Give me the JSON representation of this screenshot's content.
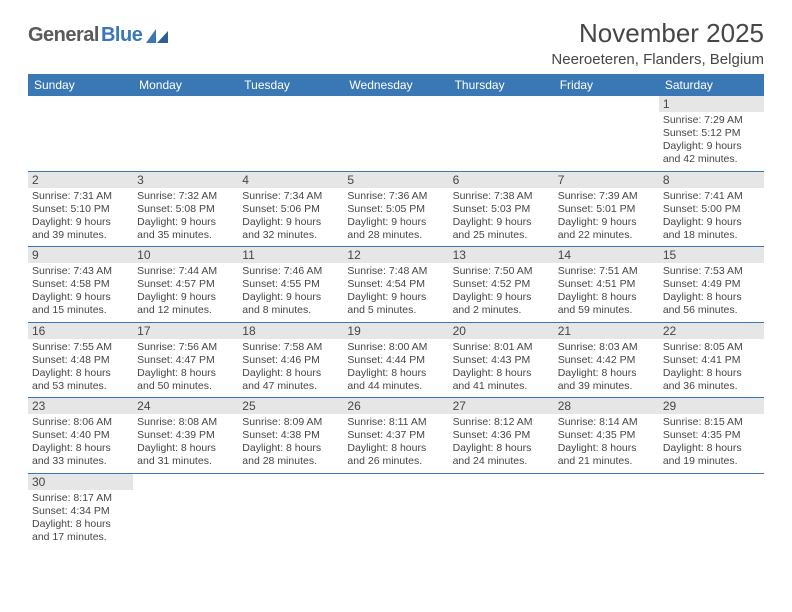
{
  "logo": {
    "part1": "General",
    "part2": "Blue"
  },
  "title": "November 2025",
  "location": "Neeroeteren, Flanders, Belgium",
  "colors": {
    "header_bg": "#3a78b5",
    "header_text": "#ffffff",
    "daynum_bg": "#e6e6e6",
    "text": "#464646",
    "border": "#3a78b5",
    "logo_gray": "#5a5a5a",
    "logo_blue": "#3a78b5"
  },
  "weekdays": [
    "Sunday",
    "Monday",
    "Tuesday",
    "Wednesday",
    "Thursday",
    "Friday",
    "Saturday"
  ],
  "weeks": [
    [
      null,
      null,
      null,
      null,
      null,
      null,
      {
        "n": "1",
        "sunrise": "Sunrise: 7:29 AM",
        "sunset": "Sunset: 5:12 PM",
        "dl1": "Daylight: 9 hours",
        "dl2": "and 42 minutes."
      }
    ],
    [
      {
        "n": "2",
        "sunrise": "Sunrise: 7:31 AM",
        "sunset": "Sunset: 5:10 PM",
        "dl1": "Daylight: 9 hours",
        "dl2": "and 39 minutes."
      },
      {
        "n": "3",
        "sunrise": "Sunrise: 7:32 AM",
        "sunset": "Sunset: 5:08 PM",
        "dl1": "Daylight: 9 hours",
        "dl2": "and 35 minutes."
      },
      {
        "n": "4",
        "sunrise": "Sunrise: 7:34 AM",
        "sunset": "Sunset: 5:06 PM",
        "dl1": "Daylight: 9 hours",
        "dl2": "and 32 minutes."
      },
      {
        "n": "5",
        "sunrise": "Sunrise: 7:36 AM",
        "sunset": "Sunset: 5:05 PM",
        "dl1": "Daylight: 9 hours",
        "dl2": "and 28 minutes."
      },
      {
        "n": "6",
        "sunrise": "Sunrise: 7:38 AM",
        "sunset": "Sunset: 5:03 PM",
        "dl1": "Daylight: 9 hours",
        "dl2": "and 25 minutes."
      },
      {
        "n": "7",
        "sunrise": "Sunrise: 7:39 AM",
        "sunset": "Sunset: 5:01 PM",
        "dl1": "Daylight: 9 hours",
        "dl2": "and 22 minutes."
      },
      {
        "n": "8",
        "sunrise": "Sunrise: 7:41 AM",
        "sunset": "Sunset: 5:00 PM",
        "dl1": "Daylight: 9 hours",
        "dl2": "and 18 minutes."
      }
    ],
    [
      {
        "n": "9",
        "sunrise": "Sunrise: 7:43 AM",
        "sunset": "Sunset: 4:58 PM",
        "dl1": "Daylight: 9 hours",
        "dl2": "and 15 minutes."
      },
      {
        "n": "10",
        "sunrise": "Sunrise: 7:44 AM",
        "sunset": "Sunset: 4:57 PM",
        "dl1": "Daylight: 9 hours",
        "dl2": "and 12 minutes."
      },
      {
        "n": "11",
        "sunrise": "Sunrise: 7:46 AM",
        "sunset": "Sunset: 4:55 PM",
        "dl1": "Daylight: 9 hours",
        "dl2": "and 8 minutes."
      },
      {
        "n": "12",
        "sunrise": "Sunrise: 7:48 AM",
        "sunset": "Sunset: 4:54 PM",
        "dl1": "Daylight: 9 hours",
        "dl2": "and 5 minutes."
      },
      {
        "n": "13",
        "sunrise": "Sunrise: 7:50 AM",
        "sunset": "Sunset: 4:52 PM",
        "dl1": "Daylight: 9 hours",
        "dl2": "and 2 minutes."
      },
      {
        "n": "14",
        "sunrise": "Sunrise: 7:51 AM",
        "sunset": "Sunset: 4:51 PM",
        "dl1": "Daylight: 8 hours",
        "dl2": "and 59 minutes."
      },
      {
        "n": "15",
        "sunrise": "Sunrise: 7:53 AM",
        "sunset": "Sunset: 4:49 PM",
        "dl1": "Daylight: 8 hours",
        "dl2": "and 56 minutes."
      }
    ],
    [
      {
        "n": "16",
        "sunrise": "Sunrise: 7:55 AM",
        "sunset": "Sunset: 4:48 PM",
        "dl1": "Daylight: 8 hours",
        "dl2": "and 53 minutes."
      },
      {
        "n": "17",
        "sunrise": "Sunrise: 7:56 AM",
        "sunset": "Sunset: 4:47 PM",
        "dl1": "Daylight: 8 hours",
        "dl2": "and 50 minutes."
      },
      {
        "n": "18",
        "sunrise": "Sunrise: 7:58 AM",
        "sunset": "Sunset: 4:46 PM",
        "dl1": "Daylight: 8 hours",
        "dl2": "and 47 minutes."
      },
      {
        "n": "19",
        "sunrise": "Sunrise: 8:00 AM",
        "sunset": "Sunset: 4:44 PM",
        "dl1": "Daylight: 8 hours",
        "dl2": "and 44 minutes."
      },
      {
        "n": "20",
        "sunrise": "Sunrise: 8:01 AM",
        "sunset": "Sunset: 4:43 PM",
        "dl1": "Daylight: 8 hours",
        "dl2": "and 41 minutes."
      },
      {
        "n": "21",
        "sunrise": "Sunrise: 8:03 AM",
        "sunset": "Sunset: 4:42 PM",
        "dl1": "Daylight: 8 hours",
        "dl2": "and 39 minutes."
      },
      {
        "n": "22",
        "sunrise": "Sunrise: 8:05 AM",
        "sunset": "Sunset: 4:41 PM",
        "dl1": "Daylight: 8 hours",
        "dl2": "and 36 minutes."
      }
    ],
    [
      {
        "n": "23",
        "sunrise": "Sunrise: 8:06 AM",
        "sunset": "Sunset: 4:40 PM",
        "dl1": "Daylight: 8 hours",
        "dl2": "and 33 minutes."
      },
      {
        "n": "24",
        "sunrise": "Sunrise: 8:08 AM",
        "sunset": "Sunset: 4:39 PM",
        "dl1": "Daylight: 8 hours",
        "dl2": "and 31 minutes."
      },
      {
        "n": "25",
        "sunrise": "Sunrise: 8:09 AM",
        "sunset": "Sunset: 4:38 PM",
        "dl1": "Daylight: 8 hours",
        "dl2": "and 28 minutes."
      },
      {
        "n": "26",
        "sunrise": "Sunrise: 8:11 AM",
        "sunset": "Sunset: 4:37 PM",
        "dl1": "Daylight: 8 hours",
        "dl2": "and 26 minutes."
      },
      {
        "n": "27",
        "sunrise": "Sunrise: 8:12 AM",
        "sunset": "Sunset: 4:36 PM",
        "dl1": "Daylight: 8 hours",
        "dl2": "and 24 minutes."
      },
      {
        "n": "28",
        "sunrise": "Sunrise: 8:14 AM",
        "sunset": "Sunset: 4:35 PM",
        "dl1": "Daylight: 8 hours",
        "dl2": "and 21 minutes."
      },
      {
        "n": "29",
        "sunrise": "Sunrise: 8:15 AM",
        "sunset": "Sunset: 4:35 PM",
        "dl1": "Daylight: 8 hours",
        "dl2": "and 19 minutes."
      }
    ],
    [
      {
        "n": "30",
        "sunrise": "Sunrise: 8:17 AM",
        "sunset": "Sunset: 4:34 PM",
        "dl1": "Daylight: 8 hours",
        "dl2": "and 17 minutes."
      },
      null,
      null,
      null,
      null,
      null,
      null
    ]
  ]
}
